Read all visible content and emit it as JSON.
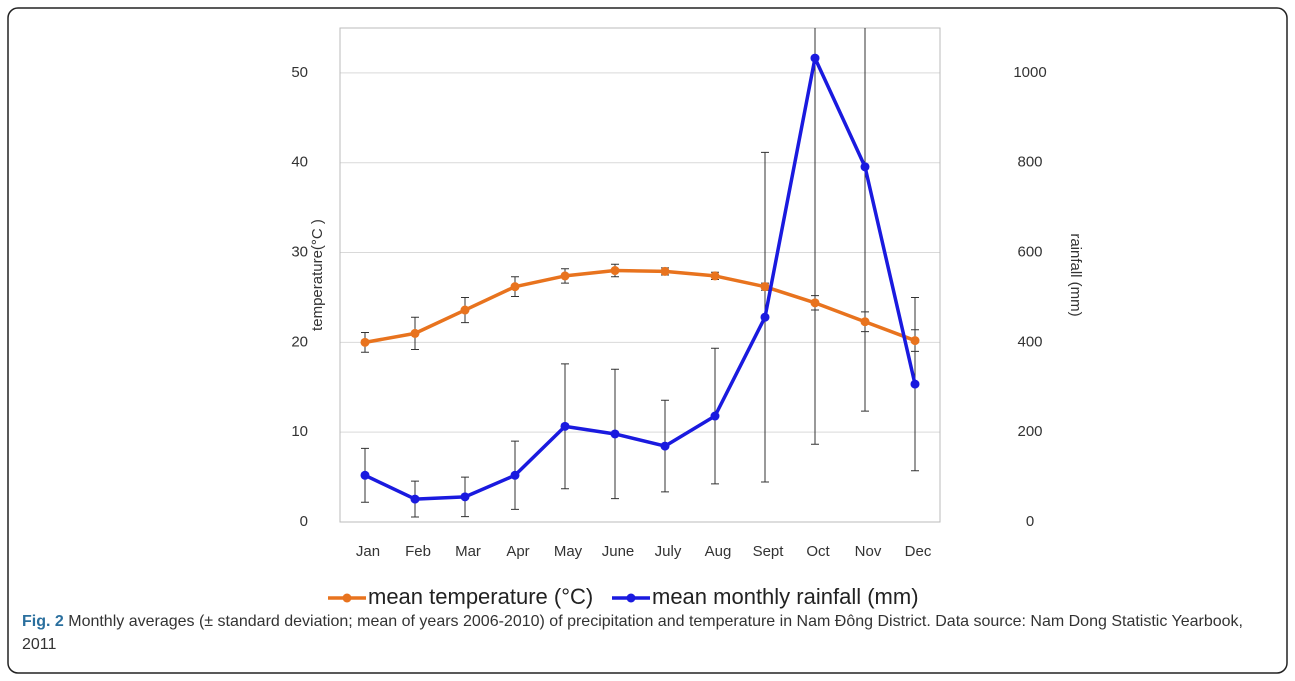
{
  "chart_data": {
    "type": "line",
    "categories": [
      "Jan",
      "Feb",
      "Mar",
      "Apr",
      "May",
      "June",
      "July",
      "Aug",
      "Sept",
      "Oct",
      "Nov",
      "Dec"
    ],
    "ylabel": "temperature(°C )",
    "y2label": "rainfall (mm)",
    "ylim": [
      0,
      55
    ],
    "yticks": [
      0,
      10,
      20,
      30,
      40,
      50
    ],
    "y2lim": [
      0,
      1100
    ],
    "y2ticks": [
      0,
      200,
      400,
      600,
      800,
      1000
    ],
    "grid": true,
    "legend": "bottom",
    "series": [
      {
        "name": "mean temperature (°C)",
        "color": "#e8731e",
        "values": [
          20,
          21,
          23.6,
          26.2,
          27.4,
          28,
          27.9,
          27.4,
          26.2,
          24.4,
          22.3,
          20.2
        ],
        "errors": [
          1.1,
          1.8,
          1.4,
          1.1,
          0.8,
          0.7,
          0.4,
          0.4,
          0.4,
          0.8,
          1.1,
          1.2
        ]
      },
      {
        "name": "mean monthly rainfall (mm)",
        "color": "#1a1adf",
        "axis": "y2",
        "values": [
          104,
          51,
          56,
          104,
          213,
          196,
          169,
          236,
          456,
          1033,
          791,
          307
        ],
        "errors": [
          60,
          40,
          44,
          76,
          139,
          144,
          102,
          151,
          367,
          860,
          544,
          193
        ]
      }
    ]
  },
  "caption": {
    "label": "Fig. 2",
    "text": "Monthly averages (± standard deviation; mean of years 2006-2010) of precipitation and temperature in Nam Đông District. Data source: Nam Dong Statistic Yearbook, 2011"
  }
}
